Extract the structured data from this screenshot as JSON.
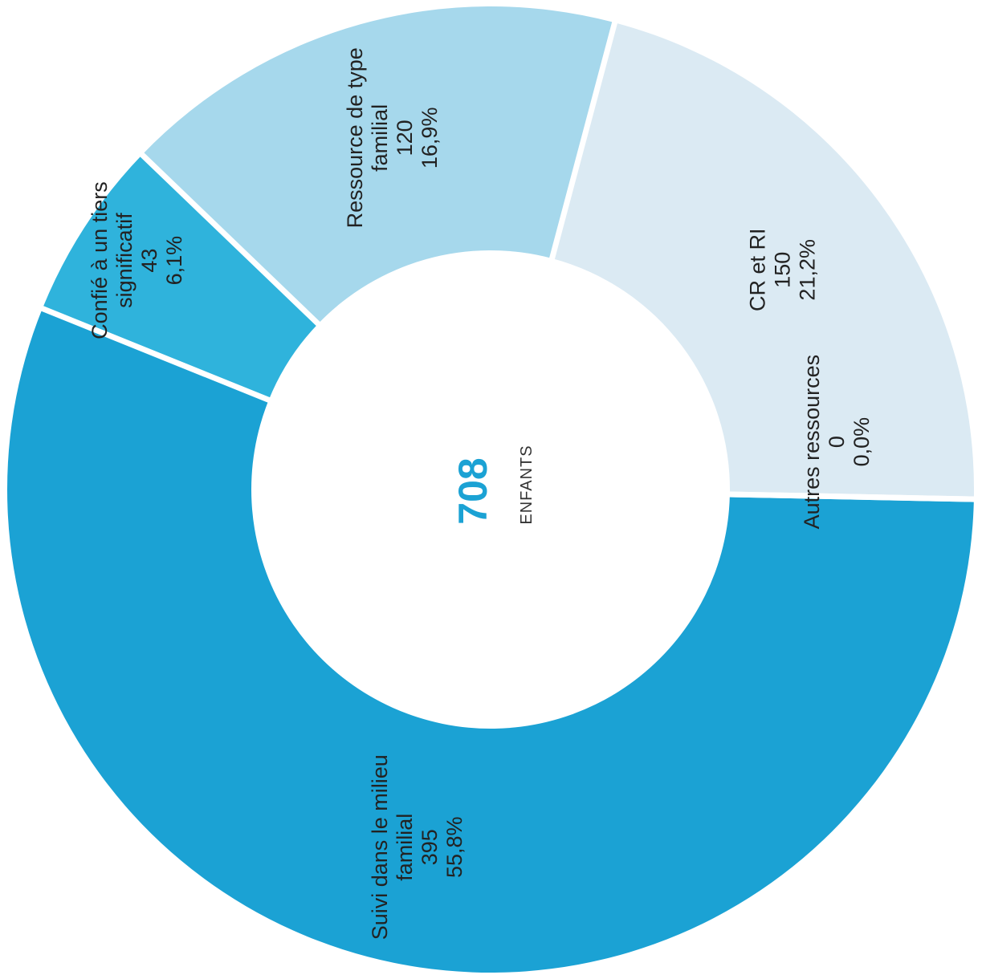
{
  "chart_data": {
    "type": "pie",
    "variant": "donut",
    "center": {
      "value": "708",
      "unit": "ENFANTS"
    },
    "slices": [
      {
        "lines": [
          "Confié à un tiers",
          "significatif"
        ],
        "value": 43,
        "value_label": "43",
        "percent": 6.1,
        "percent_label": "6,1%",
        "color": "#2fb3dc"
      },
      {
        "lines": [
          "Ressource de type",
          "familial"
        ],
        "value": 120,
        "value_label": "120",
        "percent": 16.9,
        "percent_label": "16,9%",
        "color": "#a6d8ec"
      },
      {
        "lines": [
          "CR et RI"
        ],
        "value": 150,
        "value_label": "150",
        "percent": 21.2,
        "percent_label": "21,2%",
        "color": "#dbeaf3"
      },
      {
        "lines": [
          "Autres ressources"
        ],
        "value": 0,
        "value_label": "0",
        "percent": 0.0,
        "percent_label": "0,0%",
        "color": "#dbeaf3"
      },
      {
        "lines": [
          "Suivi dans le milieu",
          "familial"
        ],
        "value": 395,
        "value_label": "395",
        "percent": 55.8,
        "percent_label": "55,8%",
        "color": "#1ba2d4"
      }
    ],
    "colors": {
      "center_value": "#1ba2d4",
      "separator": "#ffffff"
    }
  }
}
